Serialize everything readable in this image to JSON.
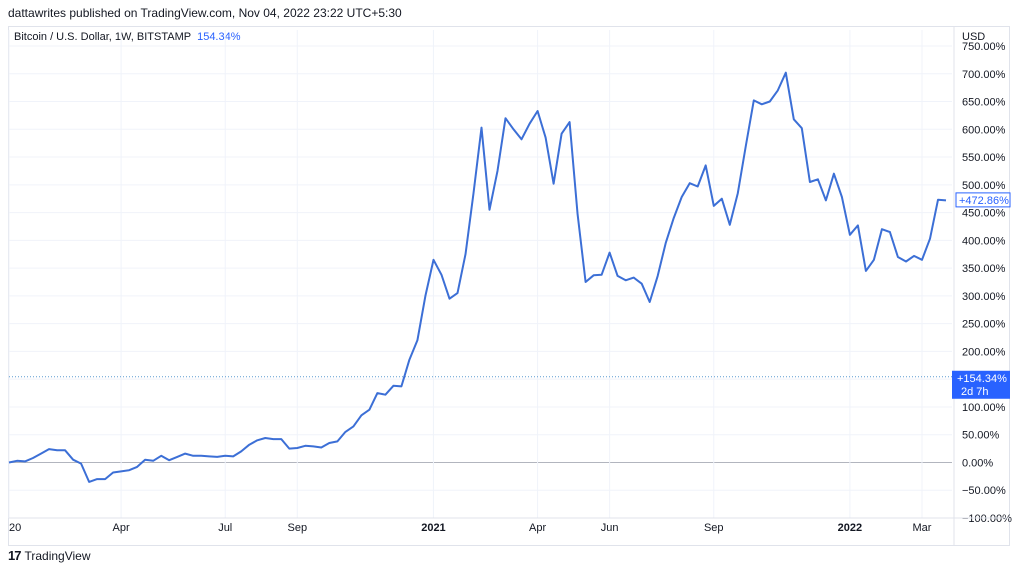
{
  "header": {
    "published": "dattawrites published on TradingView.com, Nov 04, 2022 23:22 UTC+5:30"
  },
  "legend": {
    "symbol": "Bitcoin / U.S. Dollar, 1W, BITSTAMP",
    "change": "154.34%"
  },
  "footer": {
    "brand": "TradingView",
    "logo": "tv-logo-icon"
  },
  "colors": {
    "line": "#3c6fd6",
    "accent": "#2962ff",
    "grid": "#f0f3fa",
    "zero": "#b2b5be"
  },
  "badges": {
    "last_value": "+472.86%",
    "current_value": "+154.34%",
    "current_time": "2d 7h",
    "axis_unit": "USD"
  },
  "chart_data": {
    "type": "line",
    "title": "Bitcoin / U.S. Dollar, 1W, BITSTAMP",
    "ylabel": "USD",
    "ylim": [
      -100,
      750
    ],
    "ytick_values": [
      -100,
      -50,
      0,
      50,
      100,
      150,
      200,
      250,
      300,
      350,
      400,
      450,
      500,
      550,
      600,
      650,
      700,
      750
    ],
    "ytick_labels": [
      "−100.00%",
      "−50.00%",
      "0.00%",
      "50.00%",
      "100.00%",
      "150.00%",
      "200.00%",
      "250.00%",
      "300.00%",
      "350.00%",
      "400.00%",
      "450.00%",
      "500.00%",
      "550.00%",
      "600.00%",
      "650.00%",
      "700.00%",
      "750.00%"
    ],
    "xtick_labels": [
      {
        "label": "20",
        "week": 0,
        "bold": false
      },
      {
        "label": "Apr",
        "week": 14,
        "bold": false
      },
      {
        "label": "Jul",
        "week": 27,
        "bold": false
      },
      {
        "label": "Sep",
        "week": 36,
        "bold": false
      },
      {
        "label": "2021",
        "week": 53,
        "bold": true
      },
      {
        "label": "Apr",
        "week": 66,
        "bold": false
      },
      {
        "label": "Jun",
        "week": 75,
        "bold": false
      },
      {
        "label": "Sep",
        "week": 88,
        "bold": false
      },
      {
        "label": "2022",
        "week": 105,
        "bold": true
      },
      {
        "label": "Mar",
        "week": 114,
        "bold": false
      }
    ],
    "series": [
      {
        "values": [
          0,
          3,
          2,
          8,
          16,
          24,
          22,
          22,
          5,
          -2,
          -35,
          -30,
          -30,
          -18,
          -16,
          -14,
          -8,
          5,
          3,
          12,
          4,
          10,
          16,
          12,
          12,
          11,
          10,
          12,
          11,
          20,
          32,
          40,
          44,
          42,
          42,
          25,
          26,
          30,
          29,
          27,
          35,
          38,
          55,
          65,
          85,
          95,
          125,
          122,
          138,
          137,
          185,
          220,
          300,
          365,
          338,
          295,
          305,
          375,
          485,
          603,
          455,
          525,
          620,
          600,
          582,
          610,
          633,
          585,
          502,
          592,
          613,
          447,
          325,
          337,
          338,
          378,
          336,
          328,
          333,
          322,
          289,
          336,
          395,
          440,
          478,
          503,
          497,
          535,
          462,
          475,
          428,
          485,
          570,
          652,
          645,
          650,
          670,
          702,
          618,
          602,
          505,
          510,
          472,
          520,
          478,
          410,
          427,
          345,
          365,
          420,
          415,
          370,
          362,
          372,
          365,
          403,
          473,
          472
        ]
      }
    ],
    "current_level": 154.34,
    "last_level": 472.86,
    "grid": true
  }
}
